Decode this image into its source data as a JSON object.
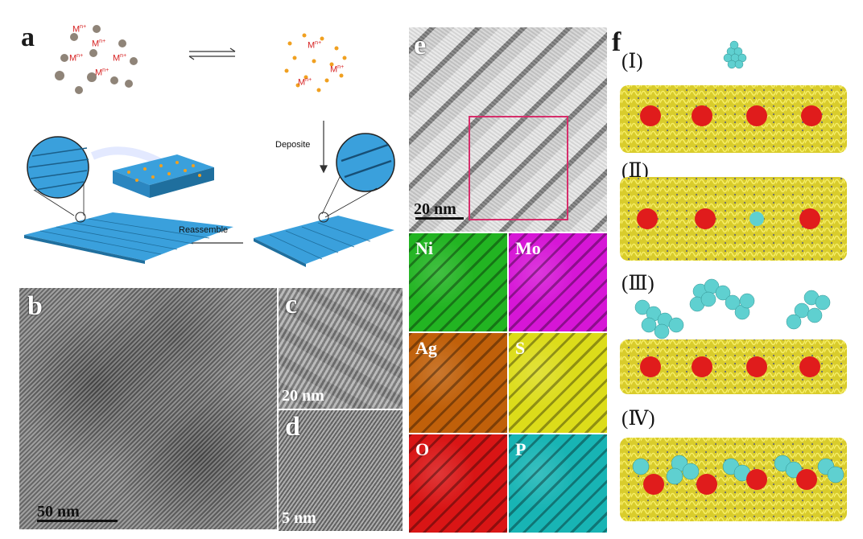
{
  "panels": {
    "a": {
      "letter": "a",
      "ions": [
        "M",
        "M",
        "M",
        "M",
        "M",
        "M",
        "M",
        "M"
      ],
      "ion_superscript": "n+",
      "deposite": "Deposite",
      "reassemble": "Reassemble"
    },
    "b": {
      "letter": "b",
      "scale": "50 nm"
    },
    "c": {
      "letter": "c",
      "scale": "20 nm"
    },
    "d": {
      "letter": "d",
      "scale": "5 nm"
    },
    "e": {
      "letter": "e",
      "scale": "20 nm"
    },
    "f": {
      "letter": "f",
      "labels": [
        "(Ⅰ)",
        "(Ⅱ)",
        "(Ⅲ)",
        "(Ⅳ)"
      ]
    }
  },
  "maps": [
    {
      "label": "Ni",
      "color": "#22b422"
    },
    {
      "label": "Mo",
      "color": "#d616d6"
    },
    {
      "label": "Ag",
      "color": "#c0600a"
    },
    {
      "label": "S",
      "color": "#dcdc1a"
    },
    {
      "label": "O",
      "color": "#d91515"
    },
    {
      "label": "P",
      "color": "#18b4b4"
    }
  ],
  "colors": {
    "film": "#3aa0dc",
    "gold_particle": "#f0a020",
    "nanowire": "#f2e63a",
    "cluster_red": "#e01c1c",
    "cluster_cyan": "#5fd0d0"
  }
}
